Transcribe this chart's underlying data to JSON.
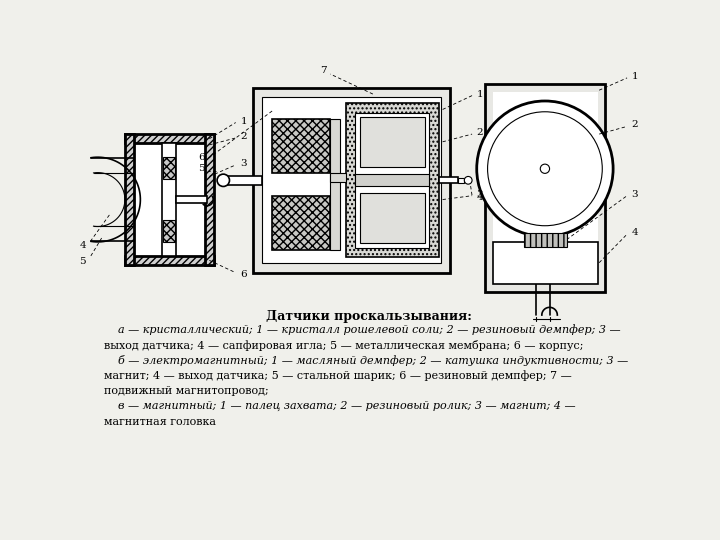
{
  "bg_color": "#f0f0eb",
  "title": "Датчики проскальзывания:",
  "line1": "    а — кристаллический; 1 — кристалл рошелевой соли; 2 — резиновый демпфер; 3 —",
  "line2": "выход датчика; 4 — сапфировая игла; 5 — металлическая мембрана; 6 — корпус;",
  "line3": "    б — электромагнитный; 1 — масляный демпфер; 2 — катушка индуктивности; 3 —",
  "line4": "магнит; 4 — выход датчика; 5 — стальной шарик; 6 — резиновый демпфер; 7 —",
  "line5": "подвижный магнитопровод;",
  "line6": "    в — магнитный; 1 — палец захвата; 2 — резиновый ролик; 3 — магнит; 4 —",
  "line7": "магнитная головка"
}
